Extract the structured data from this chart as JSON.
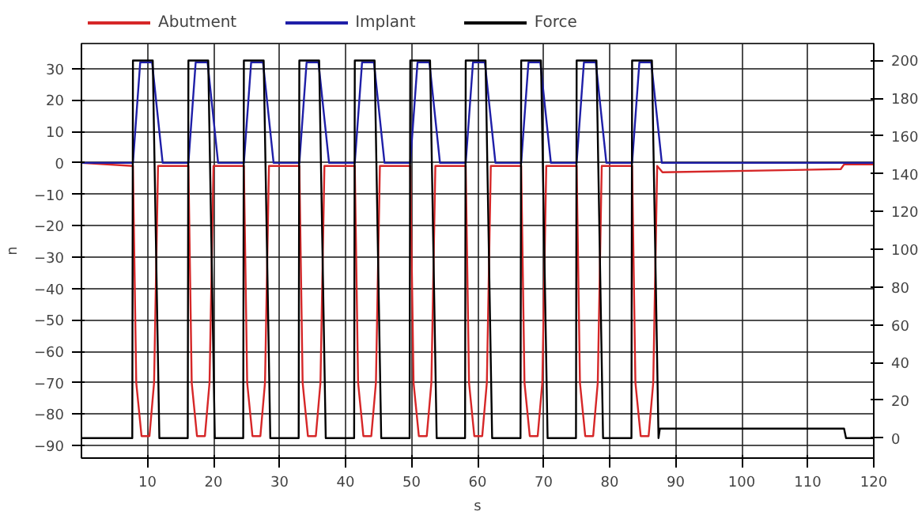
{
  "chart_data": {
    "type": "line",
    "xlabel": "s",
    "ylabel": "n",
    "xlim": [
      0,
      120
    ],
    "xticks": [
      10,
      20,
      30,
      40,
      50,
      60,
      70,
      80,
      90,
      100,
      110,
      120
    ],
    "ylim": [
      -94,
      38
    ],
    "yticks": [
      -90,
      -80,
      -70,
      -60,
      -50,
      -40,
      -30,
      -20,
      -10,
      0,
      10,
      20,
      30
    ],
    "y2lim": [
      -10.6,
      209
    ],
    "y2ticks": [
      0,
      20,
      40,
      60,
      80,
      100,
      120,
      140,
      160,
      180,
      200
    ],
    "grid": true,
    "legend": "top left",
    "marker": "none",
    "line_style": "solid",
    "series": [
      {
        "name": "Abutment",
        "color": "#d62728",
        "x": [
          0,
          7.8,
          8.3,
          9.1,
          10.3,
          11.0,
          11.6,
          16.2,
          16.7,
          17.5,
          18.7,
          19.4,
          20.0,
          24.6,
          25.1,
          25.9,
          27.1,
          27.8,
          28.4,
          33.0,
          33.5,
          34.3,
          35.5,
          36.2,
          36.8,
          41.4,
          41.9,
          42.7,
          43.9,
          44.6,
          45.2,
          49.8,
          50.3,
          51.1,
          52.3,
          53.0,
          53.6,
          58.2,
          58.7,
          59.5,
          60.7,
          61.4,
          62.0,
          66.6,
          67.1,
          67.9,
          69.1,
          69.8,
          70.4,
          75.0,
          75.5,
          76.3,
          77.5,
          78.2,
          78.8,
          83.4,
          83.9,
          84.7,
          85.9,
          86.6,
          87.2,
          88,
          115,
          115.5,
          120
        ],
        "values": [
          0,
          -1,
          -70,
          -87,
          -87,
          -70,
          -1,
          -1,
          -70,
          -87,
          -87,
          -70,
          -1,
          -1,
          -70,
          -87,
          -87,
          -70,
          -1,
          -1,
          -70,
          -87,
          -87,
          -70,
          -1,
          -1,
          -70,
          -87,
          -87,
          -70,
          -1,
          -1,
          -70,
          -87,
          -87,
          -70,
          -1,
          -1,
          -70,
          -87,
          -87,
          -70,
          -1,
          -1,
          -70,
          -87,
          -87,
          -70,
          -1,
          -1,
          -70,
          -87,
          -87,
          -70,
          -1,
          -1,
          -70,
          -87,
          -87,
          -70,
          -1,
          -3,
          -2,
          -0.5,
          -0.5
        ]
      },
      {
        "name": "Implant",
        "color": "#1f1fa8",
        "x": [
          0,
          7.8,
          8.9,
          10.7,
          12.3,
          16.2,
          17.3,
          19.1,
          20.7,
          24.6,
          25.7,
          27.5,
          29.1,
          33.0,
          34.1,
          35.9,
          37.5,
          41.4,
          42.5,
          44.3,
          45.9,
          49.8,
          50.9,
          52.7,
          54.3,
          58.2,
          59.3,
          61.1,
          62.7,
          66.6,
          67.7,
          69.5,
          71.1,
          75.0,
          76.1,
          77.9,
          79.5,
          83.4,
          84.5,
          86.3,
          87.9,
          120
        ],
        "values": [
          0,
          0,
          32,
          32,
          0,
          0,
          32,
          32,
          0,
          0,
          32,
          32,
          0,
          0,
          32,
          32,
          0,
          0,
          32,
          32,
          0,
          0,
          32,
          32,
          0,
          0,
          32,
          32,
          0,
          0,
          32,
          32,
          0,
          0,
          32,
          32,
          0,
          0,
          32,
          32,
          0,
          0
        ]
      },
      {
        "name": "Force",
        "color": "#000000",
        "axis": "y2",
        "x": [
          0,
          7.7,
          7.8,
          10.8,
          11.8,
          16.1,
          16.2,
          19.2,
          20.2,
          24.5,
          24.6,
          27.6,
          28.6,
          32.9,
          33.0,
          36.0,
          37.0,
          41.3,
          41.4,
          44.4,
          45.4,
          49.7,
          49.8,
          52.8,
          53.8,
          58.1,
          58.2,
          61.2,
          62.2,
          66.5,
          66.6,
          69.6,
          70.6,
          74.9,
          75.0,
          78.0,
          79.0,
          83.3,
          83.4,
          86.4,
          87.4,
          87.6,
          115.5,
          115.8,
          120
        ],
        "values": [
          0,
          0,
          200,
          200,
          0,
          0,
          200,
          200,
          0,
          0,
          200,
          200,
          0,
          0,
          200,
          200,
          0,
          0,
          200,
          200,
          0,
          0,
          200,
          200,
          0,
          0,
          200,
          200,
          0,
          0,
          200,
          200,
          0,
          0,
          200,
          200,
          0,
          0,
          200,
          200,
          0,
          5,
          5,
          0,
          0
        ]
      }
    ]
  }
}
